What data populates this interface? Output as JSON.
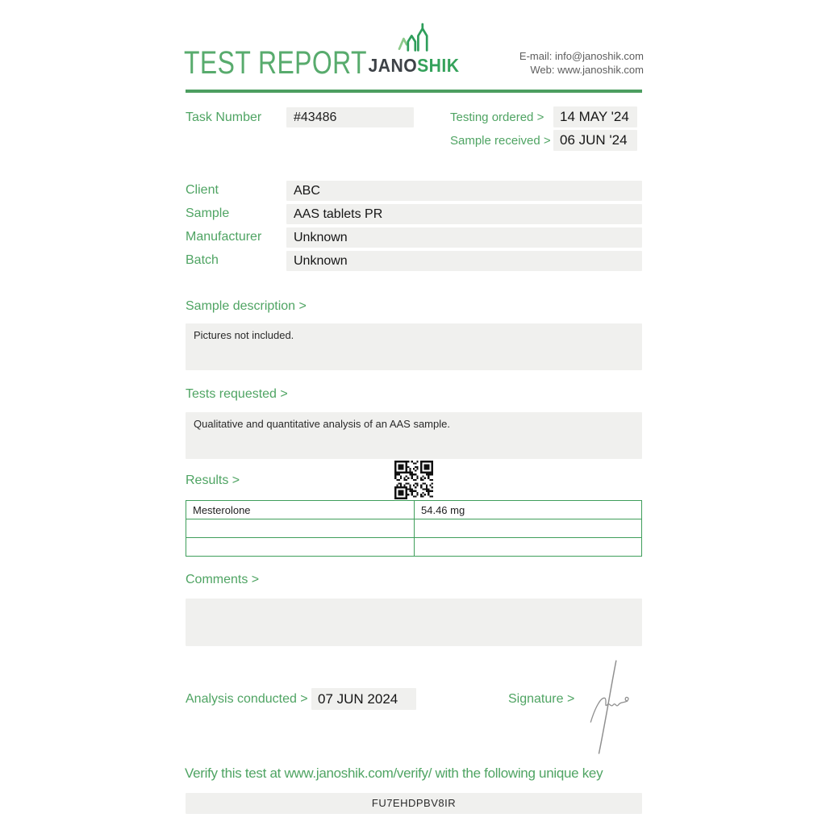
{
  "header": {
    "title": "TEST REPORT",
    "logo": {
      "text_dark": "JANO",
      "text_green": "SHIK",
      "icon": "chart-growth-icon"
    },
    "contact": {
      "email_line": "E-mail: info@janoshik.com",
      "web_line": "Web: www.janoshik.com"
    }
  },
  "task": {
    "task_number_label": "Task Number",
    "task_number": "#43486",
    "testing_ordered_label": "Testing ordered  >",
    "testing_ordered": "14 MAY '24",
    "sample_received_label": "Sample received >",
    "sample_received": "06 JUN '24"
  },
  "info_fields": [
    {
      "label": "Client",
      "value": "ABC"
    },
    {
      "label": "Sample",
      "value": "AAS tablets PR"
    },
    {
      "label": "Manufacturer",
      "value": "Unknown"
    },
    {
      "label": "Batch",
      "value": "Unknown"
    }
  ],
  "sections": {
    "sample_description": {
      "label": "Sample description >",
      "content": "Pictures not included."
    },
    "tests_requested": {
      "label": "Tests requested >",
      "content": "Qualitative and quantitative analysis of an AAS sample."
    },
    "results": {
      "label": "Results >",
      "table": {
        "rows": [
          {
            "name": "Mesterolone",
            "value": "54.46 mg"
          },
          {
            "name": "",
            "value": ""
          },
          {
            "name": "",
            "value": ""
          }
        ]
      }
    },
    "comments": {
      "label": "Comments >",
      "content": ""
    }
  },
  "footer": {
    "analysis_conducted_label": "Analysis conducted >",
    "analysis_conducted": "07 JUN 2024",
    "signature_label": "Signature >",
    "verify_text": "Verify this test at www.janoshik.com/verify/ with the following unique key",
    "unique_key": "FU7EHDPBV8IR"
  },
  "icons": {
    "logo": "chart-growth-icon",
    "qr": "qr-code",
    "signature": "handwritten-signature"
  },
  "colors": {
    "accent_green": "#4fa463",
    "title_green": "#58ab6d",
    "separator_green": "#4c9e60",
    "table_border_green": "#3f9e5b",
    "box_background": "#f0f0ee",
    "dark_text": "#1d1d1d",
    "contact_gray": "#5e5e5e",
    "logo_dark": "#3d4247"
  }
}
